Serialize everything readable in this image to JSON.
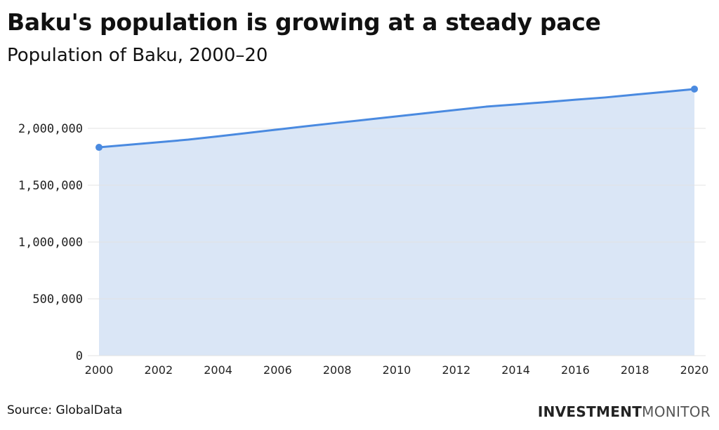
{
  "header": {
    "title": "Baku's population is growing at a steady pace",
    "subtitle": "Population of Baku, 2000–20"
  },
  "footer": {
    "source": "Source: GlobalData",
    "logo_bold": "INVESTMENT",
    "logo_light": "MONITOR"
  },
  "colors": {
    "line": "#4a8ae0",
    "area": "#dae6f6",
    "grid": "#e3e3e3"
  },
  "chart_data": {
    "type": "area",
    "title": "Baku's population is growing at a steady pace",
    "subtitle": "Population of Baku, 2000–20",
    "x": [
      2000,
      2001,
      2002,
      2003,
      2004,
      2005,
      2006,
      2007,
      2008,
      2009,
      2010,
      2011,
      2012,
      2013,
      2014,
      2015,
      2016,
      2017,
      2018,
      2019,
      2020
    ],
    "values": [
      1833000,
      1856000,
      1878000,
      1901000,
      1930000,
      1960000,
      1990000,
      2020000,
      2049000,
      2077000,
      2106000,
      2134000,
      2163000,
      2191000,
      2211000,
      2231000,
      2252000,
      2272000,
      2297000,
      2321000,
      2346000
    ],
    "xticks": [
      "2000",
      "2002",
      "2004",
      "2006",
      "2008",
      "2010",
      "2012",
      "2014",
      "2016",
      "2018",
      "2020"
    ],
    "yticks": [
      {
        "v": 0,
        "label": "0"
      },
      {
        "v": 500000,
        "label": "500,000"
      },
      {
        "v": 1000000,
        "label": "1,000,000"
      },
      {
        "v": 1500000,
        "label": "1,500,000"
      },
      {
        "v": 2000000,
        "label": "2,000,000"
      }
    ],
    "xlim": [
      2000,
      2020
    ],
    "ylim": [
      0,
      2500000
    ],
    "xlabel": "",
    "ylabel": "",
    "grid": true,
    "legend": "none"
  }
}
